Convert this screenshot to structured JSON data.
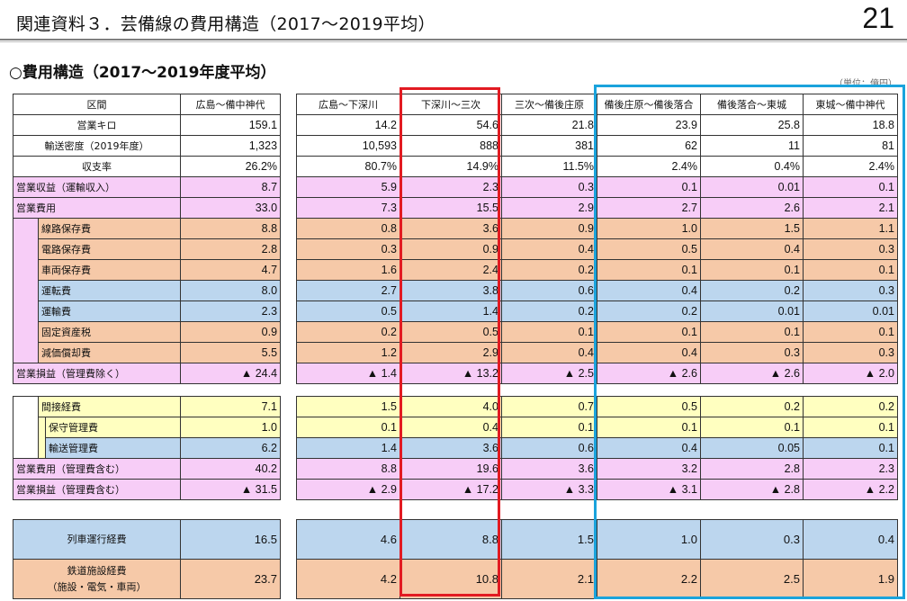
{
  "header": {
    "title": "関連資料３．芸備線の費用構造（2017～2019平均）",
    "page_number": "21"
  },
  "section": {
    "title": "○費用構造（2017～2019年度平均）",
    "unit_note": "（単位：億円）"
  },
  "labels": {
    "section_header": "区間",
    "rows_top": [
      {
        "label": "営業キロ",
        "indent": 0,
        "color": "w",
        "align": "ctr"
      },
      {
        "label": "輸送密度（2019年度）",
        "indent": 0,
        "color": "w",
        "align": "ctr"
      },
      {
        "label": "収支率",
        "indent": 0,
        "color": "w",
        "align": "ctr"
      },
      {
        "label": "営業収益（運輸収入）",
        "indent": 0,
        "color": "p",
        "align": "lbl"
      },
      {
        "label": "営業費用",
        "indent": 0,
        "color": "p",
        "align": "lbl"
      },
      {
        "label": "線路保存費",
        "indent": 1,
        "color": "o",
        "align": "lbl"
      },
      {
        "label": "電路保存費",
        "indent": 1,
        "color": "o",
        "align": "lbl"
      },
      {
        "label": "車両保存費",
        "indent": 1,
        "color": "o",
        "align": "lbl"
      },
      {
        "label": "運転費",
        "indent": 1,
        "color": "b",
        "align": "lbl"
      },
      {
        "label": "運輸費",
        "indent": 1,
        "color": "b",
        "align": "lbl"
      },
      {
        "label": "固定資産税",
        "indent": 1,
        "color": "o",
        "align": "lbl"
      },
      {
        "label": "減価償却費",
        "indent": 1,
        "color": "o",
        "align": "lbl"
      },
      {
        "label": "営業損益（管理費除く）",
        "indent": 0,
        "color": "p",
        "align": "lbl"
      }
    ],
    "rows_mid": [
      {
        "label": "間接経費",
        "indent": 1,
        "color": "y",
        "align": "lbl"
      },
      {
        "label": "保守管理費",
        "indent": 2,
        "color": "y",
        "align": "lbl"
      },
      {
        "label": "輸送管理費",
        "indent": 2,
        "color": "b",
        "align": "lbl"
      },
      {
        "label": "営業費用（管理費含む）",
        "indent": 0,
        "color": "p",
        "align": "lbl"
      },
      {
        "label": "営業損益（管理費含む）",
        "indent": 0,
        "color": "p",
        "align": "lbl"
      }
    ],
    "rows_bot": [
      {
        "label": "列車運行経費",
        "color": "b"
      },
      {
        "label": "鉄道施設経費\n（施設・電気・車両）",
        "color": "o"
      }
    ]
  },
  "overall": {
    "header": "広島～備中神代",
    "top": [
      "159.1",
      "1,323",
      "26.2%",
      "8.7",
      "33.0",
      "8.8",
      "2.8",
      "4.7",
      "8.0",
      "2.3",
      "0.9",
      "5.5",
      "▲ 24.4"
    ],
    "mid": [
      "7.1",
      "1.0",
      "6.2",
      "40.2",
      "▲ 31.5"
    ],
    "bot": [
      "16.5",
      "23.7"
    ]
  },
  "sections": {
    "headers": [
      "広島～下深川",
      "下深川～三次",
      "三次～備後庄原",
      "備後庄原～備後落合",
      "備後落合～東城",
      "東城～備中神代"
    ],
    "top": [
      [
        "14.2",
        "54.6",
        "21.8",
        "23.9",
        "25.8",
        "18.8"
      ],
      [
        "10,593",
        "888",
        "381",
        "62",
        "11",
        "81"
      ],
      [
        "80.7%",
        "14.9%",
        "11.5%",
        "2.4%",
        "0.4%",
        "2.4%"
      ],
      [
        "5.9",
        "2.3",
        "0.3",
        "0.1",
        "0.01",
        "0.1"
      ],
      [
        "7.3",
        "15.5",
        "2.9",
        "2.7",
        "2.6",
        "2.1"
      ],
      [
        "0.8",
        "3.6",
        "0.9",
        "1.0",
        "1.5",
        "1.1"
      ],
      [
        "0.3",
        "0.9",
        "0.4",
        "0.5",
        "0.4",
        "0.3"
      ],
      [
        "1.6",
        "2.4",
        "0.2",
        "0.1",
        "0.1",
        "0.1"
      ],
      [
        "2.7",
        "3.8",
        "0.6",
        "0.4",
        "0.2",
        "0.3"
      ],
      [
        "0.5",
        "1.4",
        "0.2",
        "0.2",
        "0.01",
        "0.01"
      ],
      [
        "0.2",
        "0.5",
        "0.1",
        "0.1",
        "0.1",
        "0.1"
      ],
      [
        "1.2",
        "2.9",
        "0.4",
        "0.4",
        "0.3",
        "0.3"
      ],
      [
        "▲ 1.4",
        "▲ 13.2",
        "▲ 2.5",
        "▲ 2.6",
        "▲ 2.6",
        "▲ 2.0"
      ]
    ],
    "mid": [
      [
        "1.5",
        "4.0",
        "0.7",
        "0.5",
        "0.2",
        "0.2"
      ],
      [
        "0.1",
        "0.4",
        "0.1",
        "0.1",
        "0.1",
        "0.1"
      ],
      [
        "1.4",
        "3.6",
        "0.6",
        "0.4",
        "0.05",
        "0.1"
      ],
      [
        "8.8",
        "19.6",
        "3.6",
        "3.2",
        "2.8",
        "2.3"
      ],
      [
        "▲ 2.9",
        "▲ 17.2",
        "▲ 3.3",
        "▲ 3.1",
        "▲ 2.8",
        "▲ 2.2"
      ]
    ],
    "bot": [
      [
        "4.6",
        "8.8",
        "1.5",
        "1.0",
        "0.3",
        "0.4"
      ],
      [
        "4.2",
        "10.8",
        "2.1",
        "2.2",
        "2.5",
        "1.9"
      ]
    ]
  },
  "highlights": [
    {
      "target": "下深川～三次",
      "color": "#e21b22"
    },
    {
      "target": "備後庄原～備中神代",
      "color": "#1aa3dc"
    }
  ]
}
